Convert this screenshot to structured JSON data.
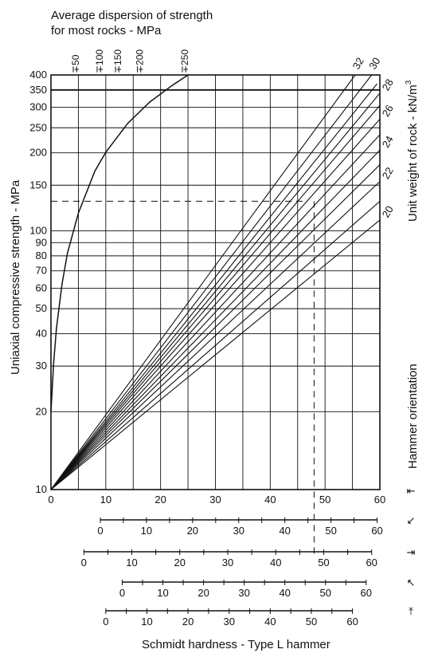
{
  "chart_data": {
    "type": "line",
    "top_title_line1": "Average dispersion of strength",
    "top_title_line2": "for most rocks - MPa",
    "ylabel": "Uniaxial compressive strength - MPa",
    "right_label": "Unit weight of rock - kN/m",
    "right_label_sup": "3",
    "xlabel": "Schmidt hardness - Type L hammer",
    "hammer_label": "Hammer orientation",
    "x_range": [
      0,
      60
    ],
    "y_range": [
      10,
      400
    ],
    "y_scale": "log",
    "x_ticks": [
      0,
      10,
      20,
      30,
      40,
      50,
      60
    ],
    "y_ticks": [
      10,
      20,
      30,
      40,
      50,
      60,
      70,
      80,
      90,
      100,
      150,
      200,
      250,
      300,
      350,
      400
    ],
    "grid": true,
    "dispersion": {
      "ticks": [
        {
          "label": "∓50",
          "y": 46
        },
        {
          "label": "∓100",
          "y": 85
        },
        {
          "label": "∓150",
          "y": 115
        },
        {
          "label": "∓200",
          "y": 151
        },
        {
          "label": "∓250",
          "y": 225
        }
      ],
      "curve": [
        [
          0,
          20
        ],
        [
          0.5,
          31
        ],
        [
          1,
          42
        ],
        [
          2,
          62
        ],
        [
          3,
          82
        ],
        [
          5,
          117
        ],
        [
          8,
          170
        ],
        [
          10,
          201
        ],
        [
          14,
          260
        ],
        [
          18,
          314
        ],
        [
          22,
          363
        ],
        [
          25,
          400
        ]
      ]
    },
    "unit_weight_lines": [
      {
        "label": "20",
        "end": [
          60,
          110
        ]
      },
      {
        "label": "",
        "end": [
          60,
          130
        ]
      },
      {
        "label": "22",
        "end": [
          60,
          155
        ]
      },
      {
        "label": "",
        "end": [
          60,
          180
        ]
      },
      {
        "label": "24",
        "end": [
          60,
          205
        ]
      },
      {
        "label": "",
        "end": [
          60,
          235
        ]
      },
      {
        "label": "26",
        "end": [
          60,
          270
        ]
      },
      {
        "label": "",
        "end": [
          60,
          305
        ]
      },
      {
        "label": "28",
        "end": [
          60,
          340
        ]
      },
      {
        "label": "",
        "end": [
          59.5,
          370
        ]
      },
      {
        "label": "30",
        "end": [
          58.5,
          400
        ]
      },
      {
        "label": "32",
        "end": [
          55.5,
          400
        ]
      }
    ],
    "unit_weight_origin": [
      0,
      10
    ],
    "dashed_guides": {
      "from_x": 48,
      "y": 130
    },
    "hammer_scales": [
      {
        "orientation": "down",
        "zero_at": 0,
        "ticks": [
          0,
          10,
          20,
          30,
          40,
          50,
          60
        ],
        "end_at": 60
      },
      {
        "orientation": "down-inclined",
        "zero_at": 9,
        "ticks": [
          0,
          10,
          20,
          30,
          40,
          50,
          60
        ],
        "end_at": 59.5
      },
      {
        "orientation": "horizontal",
        "zero_at": 6,
        "ticks": [
          0,
          10,
          20,
          30,
          40,
          50,
          60
        ],
        "end_at": 58.5
      },
      {
        "orientation": "up-inclined",
        "zero_at": 13,
        "ticks": [
          0,
          10,
          20,
          30,
          40,
          50,
          60
        ],
        "end_at": 57.5
      },
      {
        "orientation": "up",
        "zero_at": 10,
        "ticks": [
          0,
          10,
          20,
          30,
          40,
          50,
          60
        ],
        "end_at": 55
      }
    ]
  }
}
